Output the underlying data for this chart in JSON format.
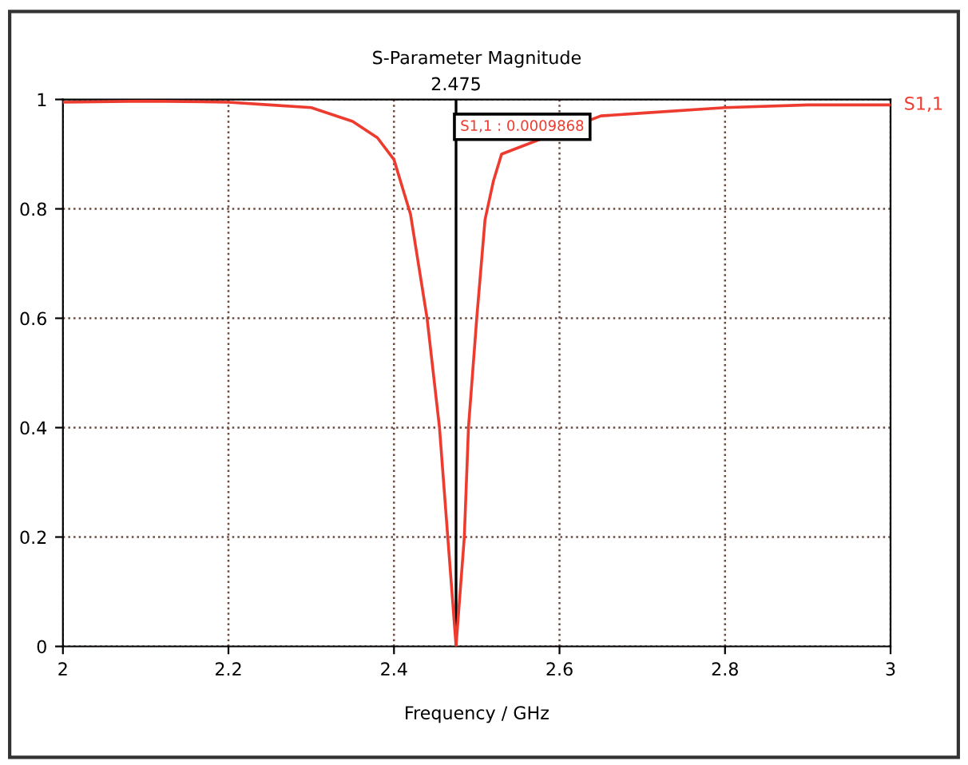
{
  "chart_data": {
    "type": "line",
    "title": "S-Parameter Magnitude",
    "xlabel": "Frequency / GHz",
    "x": [
      2.0,
      2.1,
      2.2,
      2.25,
      2.3,
      2.35,
      2.38,
      2.4,
      2.42,
      2.44,
      2.455,
      2.465,
      2.475,
      2.485,
      2.49,
      2.5,
      2.51,
      2.52,
      2.53,
      2.65,
      2.7,
      2.8,
      2.9,
      3.0
    ],
    "series": [
      {
        "name": "S1,1",
        "color": "#ee3b2f",
        "values": [
          0.995,
          0.997,
          0.995,
          0.99,
          0.985,
          0.96,
          0.93,
          0.89,
          0.79,
          0.6,
          0.4,
          0.2,
          0.0009868,
          0.2,
          0.4,
          0.6,
          0.78,
          0.85,
          0.9,
          0.97,
          0.975,
          0.985,
          0.99,
          0.99
        ]
      }
    ],
    "xlim": [
      2,
      3
    ],
    "xticks": [
      2,
      2.2,
      2.4,
      2.6,
      2.8,
      3
    ],
    "ylim": [
      0,
      1
    ],
    "yticks": [
      0,
      0.2,
      0.4,
      0.6,
      0.8,
      1
    ],
    "ref_lines": [
      {
        "axis": "x",
        "value": 2.475,
        "label": "2.475",
        "color": "#000000",
        "line_style": "solid"
      }
    ],
    "annotations": [
      "S1,1 : 0.0009868"
    ],
    "grid": true,
    "line_style": "solid",
    "marker": "none"
  }
}
